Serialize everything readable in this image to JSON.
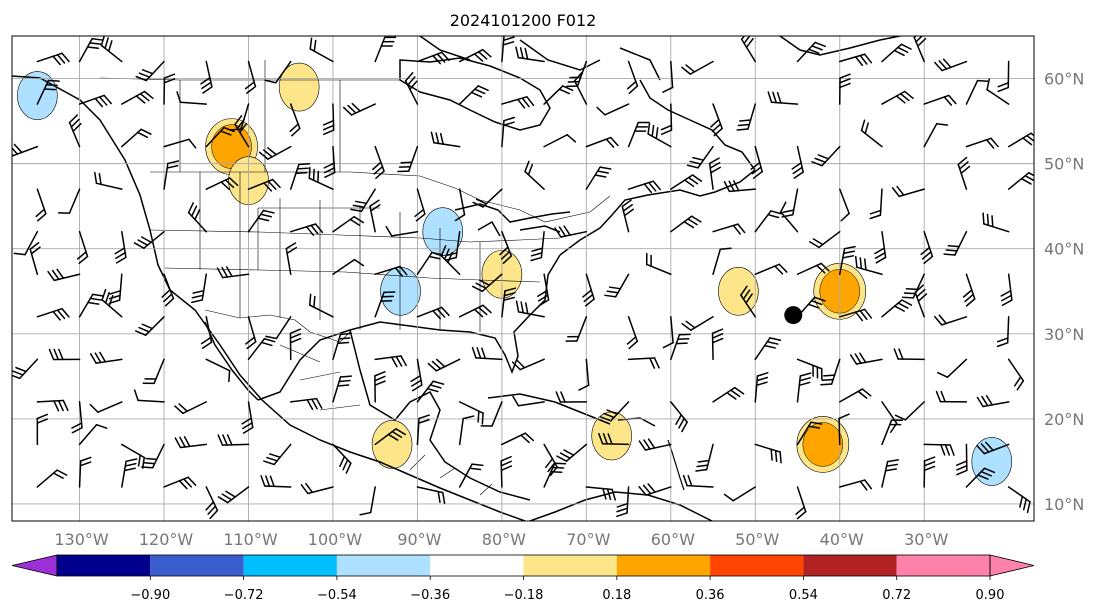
{
  "title": "2024101200 F012",
  "map": {
    "lon_range": [
      -138,
      -17
    ],
    "lat_range": [
      8,
      65
    ],
    "lon_labels": [
      "130°W",
      "120°W",
      "110°W",
      "100°W",
      "90°W",
      "80°W",
      "70°W",
      "60°W",
      "50°W",
      "40°W",
      "30°W"
    ],
    "lon_values": [
      -130,
      -120,
      -110,
      -100,
      -90,
      -80,
      -70,
      -60,
      -50,
      -40,
      -30
    ],
    "lat_labels": [
      "60°N",
      "50°N",
      "40°N",
      "30°N",
      "20°N",
      "10°N"
    ],
    "lat_values": [
      60,
      50,
      40,
      30,
      20,
      10
    ],
    "gridlines": true,
    "wind_barbs": true,
    "marker": {
      "lon": -45.5,
      "lat": 32.2
    }
  },
  "colorbar": {
    "labels": [
      "−0.90",
      "−0.72",
      "−0.54",
      "−0.36",
      "−0.18",
      "0.18",
      "0.36",
      "0.54",
      "0.72",
      "0.90"
    ],
    "colors": [
      "#9b30d9",
      "#00008c",
      "#3a5fcd",
      "#00bfff",
      "#aee1ff",
      "#ffffff",
      "#fde68a",
      "#ffa500",
      "#ff4500",
      "#b22222",
      "#ff82ab"
    ]
  },
  "chart_data": {
    "type": "heatmap",
    "title": "2024101200 F012",
    "xlabel": "",
    "ylabel": "",
    "xlim": [
      -138,
      -17
    ],
    "ylim": [
      8,
      65
    ],
    "x_ticks": [
      "130°W",
      "120°W",
      "110°W",
      "100°W",
      "90°W",
      "80°W",
      "70°W",
      "60°W",
      "50°W",
      "40°W",
      "30°W"
    ],
    "y_ticks": [
      "60°N",
      "50°N",
      "40°N",
      "30°N",
      "20°N",
      "10°N"
    ],
    "color_levels": [
      -0.9,
      -0.72,
      -0.54,
      -0.36,
      -0.18,
      0.18,
      0.36,
      0.54,
      0.72,
      0.9
    ],
    "features": [
      {
        "lon": -112,
        "lat": 52,
        "level": 0.54
      },
      {
        "lon": -110,
        "lat": 48,
        "level": 0.36
      },
      {
        "lon": -104,
        "lat": 59,
        "level": 0.36
      },
      {
        "lon": -80,
        "lat": 37,
        "level": 0.18
      },
      {
        "lon": -87,
        "lat": 42,
        "level": -0.36
      },
      {
        "lon": -92,
        "lat": 35,
        "level": -0.18
      },
      {
        "lon": -135,
        "lat": 58,
        "level": -0.36
      },
      {
        "lon": -52,
        "lat": 35,
        "level": 0.36
      },
      {
        "lon": -40,
        "lat": 35,
        "level": 0.54
      },
      {
        "lon": -42,
        "lat": 17,
        "level": 0.54
      },
      {
        "lon": -67,
        "lat": 18,
        "level": 0.36
      },
      {
        "lon": -93,
        "lat": 17,
        "level": 0.18
      },
      {
        "lon": -22,
        "lat": 15,
        "level": -0.18
      }
    ]
  }
}
